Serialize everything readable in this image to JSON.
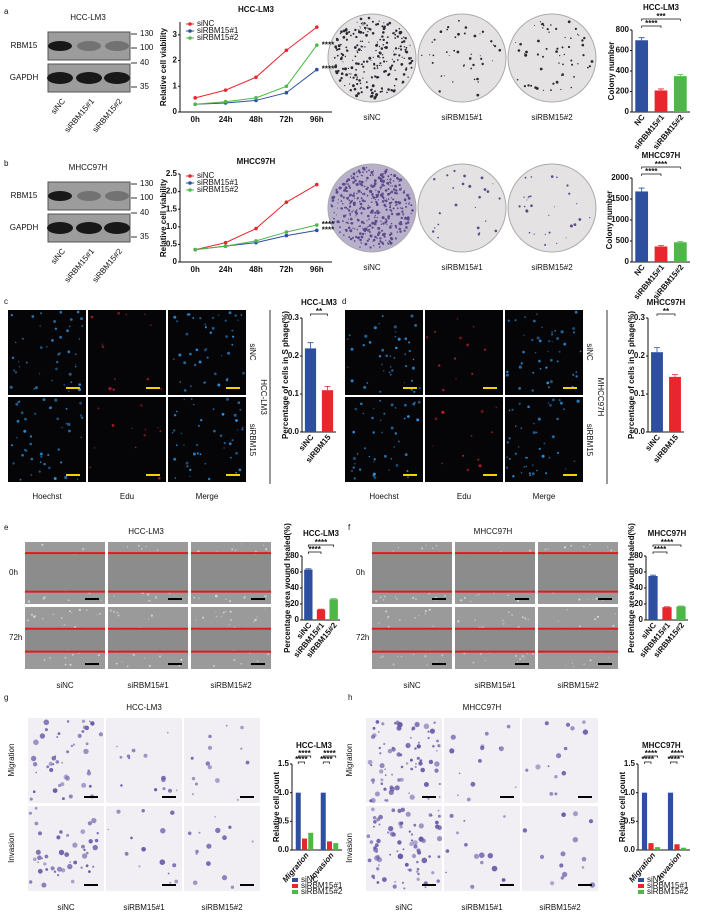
{
  "panels": [
    {
      "letter": "a",
      "blot": {
        "title": "HCC-LM3",
        "bands": [
          "RBM15",
          "GAPDH"
        ],
        "markers": [
          130,
          100,
          40,
          35
        ],
        "lanes": [
          "siNC",
          "siRBM15#1",
          "siRBM15#2"
        ]
      },
      "plates": [
        "siNC",
        "siRBM15#1",
        "siRBM15#2"
      ]
    },
    {
      "letter": "b",
      "blot": {
        "title": "MHCC97H",
        "bands": [
          "RBM15",
          "GAPDH"
        ],
        "markers": [
          130,
          100,
          40,
          35
        ],
        "lanes": [
          "siNC",
          "siRBM15#1",
          "siRBM15#2"
        ]
      },
      "plates": [
        "siNC",
        "siRBM15#1",
        "siRBM15#2"
      ]
    },
    {
      "letter": "c",
      "cell_line": "HCC-LM3",
      "rows": [
        "siNC",
        "siRBM15"
      ],
      "columns": [
        "Hoechst",
        "Edu",
        "Merge"
      ]
    },
    {
      "letter": "d",
      "cell_line": "MHCC97H",
      "rows": [
        "siNC",
        "siRBM15"
      ],
      "columns": [
        "Hoechst",
        "Edu",
        "Merge"
      ]
    },
    {
      "letter": "e",
      "title": "HCC-LM3",
      "rows": [
        "0h",
        "72h"
      ],
      "columns": [
        "siNC",
        "siRBM15#1",
        "siRBM15#2"
      ]
    },
    {
      "letter": "f",
      "title": "MHCC97H",
      "rows": [
        "0h",
        "72h"
      ],
      "columns": [
        "siNC",
        "siRBM15#1",
        "siRBM15#2"
      ]
    },
    {
      "letter": "g",
      "title": "HCC-LM3",
      "rows": [
        "Migration",
        "Invasion"
      ],
      "columns": [
        "siNC",
        "siRBM15#1",
        "siRBM15#2"
      ]
    },
    {
      "letter": "h",
      "title": "MHCC97H",
      "rows": [
        "Migration",
        "Invasion"
      ],
      "columns": [
        "siNC",
        "siRBM15#1",
        "siRBM15#2"
      ]
    }
  ],
  "chart_data": [
    {
      "type": "line",
      "title": "HCC-LM3",
      "y_label": "Relative cell viability",
      "categories": [
        "0h",
        "24h",
        "48h",
        "72h",
        "96h"
      ],
      "series": [
        {
          "name": "siNC",
          "color": "#e8262d",
          "values": [
            0.55,
            0.85,
            1.35,
            2.4,
            3.3
          ]
        },
        {
          "name": "siRBM15#1",
          "color": "#2e4fa0",
          "values": [
            0.3,
            0.35,
            0.45,
            0.75,
            1.65
          ]
        },
        {
          "name": "siRBM15#2",
          "color": "#4db848",
          "values": [
            0.3,
            0.4,
            0.55,
            1.0,
            2.6
          ]
        }
      ],
      "ylim": [
        0,
        3.5
      ],
      "yticks": [
        0,
        1,
        2,
        3
      ],
      "annotations": [
        "****",
        "****"
      ]
    },
    {
      "type": "bar",
      "title": "HCC-LM3",
      "y_label": "Colony number",
      "categories": [
        "NC",
        "siRBM15#1",
        "siRBM15#2"
      ],
      "values": [
        700,
        210,
        350
      ],
      "errors": [
        25,
        15,
        15
      ],
      "colors": [
        "#2e4fa0",
        "#e8262d",
        "#4db848"
      ],
      "ylim": [
        0,
        800
      ],
      "yticks": [
        0,
        200,
        400,
        600,
        800
      ],
      "annotations": [
        "****",
        "***"
      ]
    },
    {
      "type": "line",
      "title": "MHCC97H",
      "y_label": "Relative cell viability",
      "categories": [
        "0h",
        "24h",
        "48h",
        "72h",
        "96h"
      ],
      "series": [
        {
          "name": "siNC",
          "color": "#e8262d",
          "values": [
            0.35,
            0.55,
            0.95,
            1.7,
            2.2
          ]
        },
        {
          "name": "siRBM15#1",
          "color": "#2e4fa0",
          "values": [
            0.35,
            0.45,
            0.55,
            0.75,
            0.9
          ]
        },
        {
          "name": "siRBM15#2",
          "color": "#4db848",
          "values": [
            0.35,
            0.45,
            0.6,
            0.85,
            1.05
          ]
        }
      ],
      "ylim": [
        0,
        2.5
      ],
      "yticks": [
        0,
        0.5,
        {
          "value": 1,
          "label": "1.0"
        },
        1.5,
        {
          "value": 2,
          "label": "2.0"
        },
        2.5
      ],
      "annotations": [
        "****",
        "****"
      ]
    },
    {
      "type": "bar",
      "title": "MHCC97H",
      "y_label": "Colony number",
      "categories": [
        "NC",
        "siRBM15#1",
        "siRBM15#2"
      ],
      "values": [
        1680,
        370,
        470
      ],
      "errors": [
        80,
        20,
        15
      ],
      "colors": [
        "#2e4fa0",
        "#e8262d",
        "#4db848"
      ],
      "ylim": [
        0,
        2000
      ],
      "yticks": [
        0,
        500,
        1000,
        1500,
        2000
      ],
      "annotations": [
        "****",
        "****"
      ]
    },
    {
      "type": "bar",
      "title": "HCC-LM3",
      "y_label": "Percentage of cells in S phage(%)",
      "categories": [
        "siNC",
        "siRBM15"
      ],
      "values": [
        0.22,
        0.11
      ],
      "errors": [
        0.015,
        0.01
      ],
      "colors": [
        "#2e4fa0",
        "#e8262d"
      ],
      "ylim": [
        0,
        0.3
      ],
      "yticks": [
        {
          "value": 0,
          "label": "0.0"
        },
        0.1,
        0.2,
        0.3
      ],
      "annotations": [
        "**"
      ]
    },
    {
      "type": "bar",
      "title": "MHCC97H",
      "y_label": "Percentage of cells in S phage(%)",
      "categories": [
        "siNC",
        "siRBM15"
      ],
      "values": [
        0.21,
        0.145
      ],
      "errors": [
        0.012,
        0.006
      ],
      "colors": [
        "#2e4fa0",
        "#e8262d"
      ],
      "ylim": [
        0,
        0.3
      ],
      "yticks": [
        {
          "value": 0,
          "label": "0.0"
        },
        0.1,
        0.2,
        0.3
      ],
      "annotations": [
        "**"
      ]
    },
    {
      "type": "bar",
      "title": "HCC-LM3",
      "y_label": "Percentage area wound healed(%)",
      "categories": [
        "siNC",
        "siRBM15#1",
        "siRBM15#2"
      ],
      "values": [
        63,
        13,
        26
      ],
      "errors": [
        1,
        0.5,
        0.7
      ],
      "colors": [
        "#2e4fa0",
        "#e8262d",
        "#4db848"
      ],
      "ylim": [
        0,
        80
      ],
      "yticks": [
        0,
        20,
        40,
        60,
        80
      ],
      "annotations": [
        "****",
        "****"
      ]
    },
    {
      "type": "bar",
      "title": "MHCC97H",
      "y_label": "Percentage area wound healed(%)",
      "categories": [
        "siNC",
        "siRBM15#1",
        "siRBM15#2"
      ],
      "values": [
        55,
        16,
        17
      ],
      "errors": [
        1,
        0.5,
        0.5
      ],
      "colors": [
        "#2e4fa0",
        "#e8262d",
        "#4db848"
      ],
      "ylim": [
        0,
        80
      ],
      "yticks": [
        0,
        20,
        40,
        60,
        80
      ],
      "annotations": [
        "****",
        "****"
      ]
    },
    {
      "type": "grouped_bar",
      "title": "HCC-LM3",
      "y_label": "Relative cell count",
      "categories": [
        "Migration",
        "Invasion"
      ],
      "series": [
        {
          "name": "siNC",
          "color": "#2e4fa0",
          "values": [
            1,
            1
          ]
        },
        {
          "name": "siRBM15#1",
          "color": "#e8262d",
          "values": [
            0.2,
            0.15
          ]
        },
        {
          "name": "siRBM15#2",
          "color": "#4db848",
          "values": [
            0.3,
            0.12
          ]
        }
      ],
      "ylim": [
        0,
        1.5
      ],
      "yticks": [
        {
          "value": 0,
          "label": "0.0"
        },
        0.5,
        {
          "value": 1,
          "label": "1.0"
        },
        1.5
      ],
      "annotations": [
        [
          "****",
          "****"
        ],
        [
          "****",
          "****"
        ]
      ]
    },
    {
      "type": "grouped_bar",
      "title": "MHCC97H",
      "y_label": "Relative cell count",
      "categories": [
        "Migration",
        "Invasion"
      ],
      "series": [
        {
          "name": "siNC",
          "color": "#2e4fa0",
          "values": [
            1,
            1
          ]
        },
        {
          "name": "siRBM15#1",
          "color": "#e8262d",
          "values": [
            0.12,
            0.1
          ]
        },
        {
          "name": "siRBM15#2",
          "color": "#4db848",
          "values": [
            0.05,
            0.04
          ]
        }
      ],
      "ylim": [
        0,
        1.5
      ],
      "yticks": [
        {
          "value": 0,
          "label": "0.0"
        },
        0.5,
        {
          "value": 1,
          "label": "1.0"
        },
        1.5
      ],
      "annotations": [
        [
          "****",
          "****"
        ],
        [
          "****",
          "****"
        ]
      ]
    }
  ]
}
